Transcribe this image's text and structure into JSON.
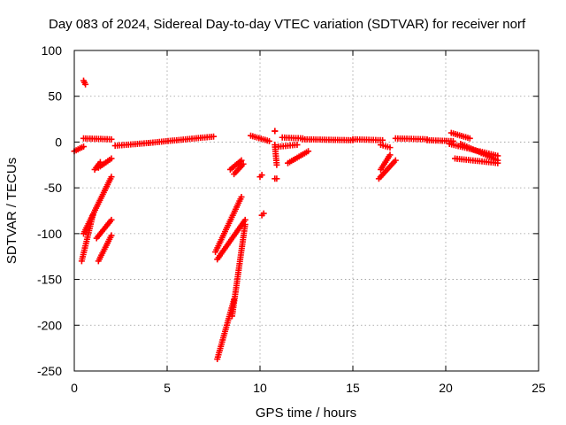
{
  "chart_data": {
    "type": "scatter",
    "title": "Day 083 of 2024, Sidereal Day-to-day VTEC variation (SDTVAR) for receiver norf",
    "xlabel": "GPS time / hours",
    "ylabel": "SDTVAR / TECUs",
    "xlim": [
      0,
      25
    ],
    "ylim": [
      -250,
      100
    ],
    "xticks": [
      "0",
      "5",
      "10",
      "15",
      "20",
      "25"
    ],
    "yticks": [
      "100",
      "50",
      "0",
      "-50",
      "-100",
      "-150",
      "-200",
      "-250"
    ],
    "grid": true,
    "marker": "plus",
    "color": "#ff0000",
    "segments": [
      [
        [
          0.0,
          -10
        ],
        [
          0.5,
          -5
        ]
      ],
      [
        [
          0.5,
          67
        ],
        [
          0.6,
          63
        ]
      ],
      [
        [
          0.5,
          4
        ],
        [
          2.0,
          3
        ]
      ],
      [
        [
          2.2,
          -4
        ],
        [
          4.0,
          -1
        ]
      ],
      [
        [
          4.0,
          -1
        ],
        [
          7.5,
          6
        ]
      ],
      [
        [
          0.4,
          -130
        ],
        [
          1.0,
          -80
        ]
      ],
      [
        [
          0.5,
          -100
        ],
        [
          2.0,
          -38
        ]
      ],
      [
        [
          1.2,
          -105
        ],
        [
          2.0,
          -85
        ]
      ],
      [
        [
          1.3,
          -130
        ],
        [
          2.0,
          -102
        ]
      ],
      [
        [
          1.1,
          -30
        ],
        [
          1.4,
          -22
        ]
      ],
      [
        [
          1.3,
          -28
        ],
        [
          2.0,
          -18
        ]
      ],
      [
        [
          7.6,
          -120
        ],
        [
          9.0,
          -60
        ]
      ],
      [
        [
          7.7,
          -128
        ],
        [
          9.2,
          -85
        ]
      ],
      [
        [
          7.7,
          -237
        ],
        [
          8.6,
          -172
        ]
      ],
      [
        [
          8.5,
          -190
        ],
        [
          9.2,
          -90
        ]
      ],
      [
        [
          8.4,
          -30
        ],
        [
          9.0,
          -20
        ]
      ],
      [
        [
          8.6,
          -35
        ],
        [
          9.1,
          -24
        ]
      ],
      [
        [
          9.5,
          7
        ],
        [
          10.5,
          1
        ]
      ],
      [
        [
          10.0,
          -38
        ],
        [
          10.1,
          -36
        ]
      ],
      [
        [
          10.1,
          -80
        ],
        [
          10.2,
          -78
        ]
      ],
      [
        [
          10.8,
          12
        ],
        [
          10.8,
          12
        ]
      ],
      [
        [
          10.8,
          -3
        ],
        [
          10.9,
          -25
        ]
      ],
      [
        [
          10.8,
          -40
        ],
        [
          10.9,
          -40
        ]
      ],
      [
        [
          11.2,
          5
        ],
        [
          12.3,
          4
        ]
      ],
      [
        [
          11.0,
          -5
        ],
        [
          12.0,
          -3
        ]
      ],
      [
        [
          11.5,
          -23
        ],
        [
          12.6,
          -10
        ]
      ],
      [
        [
          12.3,
          3
        ],
        [
          15.0,
          2
        ]
      ],
      [
        [
          15.0,
          3
        ],
        [
          16.6,
          2
        ]
      ],
      [
        [
          16.5,
          -3
        ],
        [
          17.0,
          -6
        ]
      ],
      [
        [
          16.4,
          -40
        ],
        [
          17.3,
          -20
        ]
      ],
      [
        [
          16.5,
          -30
        ],
        [
          17.0,
          -14
        ]
      ],
      [
        [
          17.3,
          4
        ],
        [
          19.0,
          3
        ]
      ],
      [
        [
          19.0,
          2
        ],
        [
          20.4,
          1
        ]
      ],
      [
        [
          20.3,
          10
        ],
        [
          21.3,
          4
        ]
      ],
      [
        [
          20.2,
          -2
        ],
        [
          22.8,
          -15
        ]
      ],
      [
        [
          20.8,
          -2
        ],
        [
          22.8,
          -20
        ]
      ],
      [
        [
          20.5,
          -18
        ],
        [
          22.8,
          -23
        ]
      ]
    ]
  }
}
